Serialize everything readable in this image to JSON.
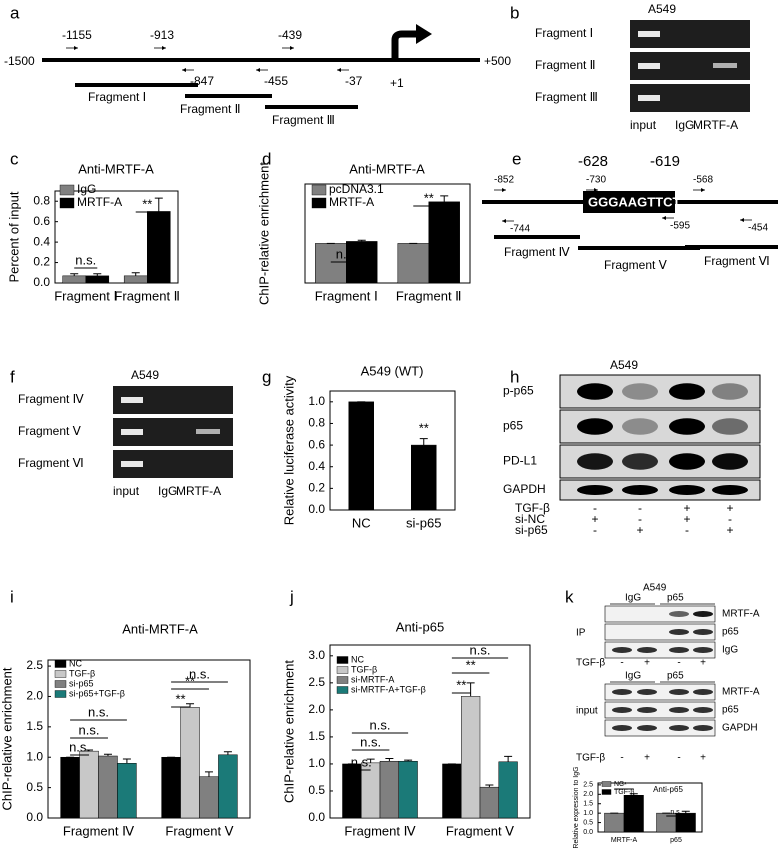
{
  "figure": {
    "panel_letters": [
      "a",
      "b",
      "c",
      "d",
      "e",
      "f",
      "g",
      "h",
      "i",
      "j",
      "k"
    ]
  },
  "chart_data": [
    {
      "type": "bar",
      "title": "Anti-MRTF-A",
      "y_label": "Percent of input",
      "categories": [
        "Fragment Ⅰ",
        "Fragment Ⅱ"
      ],
      "series": [
        {
          "name": "IgG",
          "color": "#808080",
          "values": [
            0.07,
            0.07
          ],
          "errors": [
            0.02,
            0.03
          ]
        },
        {
          "name": "MRTF-A",
          "color": "#000000",
          "values": [
            0.07,
            0.7
          ],
          "errors": [
            0.02,
            0.13
          ]
        }
      ],
      "ylim": [
        0,
        0.9
      ],
      "yticks": [
        {
          "value": 0,
          "label": "0.0"
        },
        0.2,
        0.4,
        0.6,
        0.8
      ],
      "annotations": [
        "n.s.",
        "**"
      ]
    },
    {
      "type": "bar",
      "title": "Anti-MRTF-A",
      "y_label": "ChIP-relative enrichment",
      "categories": [
        "Fragment Ⅰ",
        "Fragment Ⅱ"
      ],
      "series": [
        {
          "name": "pcDNA3.1",
          "color": "#808080",
          "values": [
            1,
            1
          ],
          "errors": [
            0,
            0
          ]
        },
        {
          "name": "MRTF-A",
          "color": "#000000",
          "values": [
            1.05,
            2.05
          ],
          "errors": [
            0.03,
            0.15
          ]
        }
      ],
      "ylim": [
        0,
        2.5
      ],
      "annotations": [
        "n.s.",
        "**"
      ]
    },
    {
      "type": "bar",
      "title": "A549 (WT)",
      "y_label": "Relative luciferase activity",
      "categories": [
        "NC",
        "si-p65"
      ],
      "series": [
        {
          "name": null,
          "color": "#000000",
          "values": [
            1.0,
            0.6
          ],
          "errors": [
            0,
            0.06
          ]
        }
      ],
      "ylim": [
        0,
        1.1
      ],
      "yticks": [
        {
          "value": 0,
          "label": "0.0"
        },
        0.2,
        0.4,
        0.6,
        0.8,
        {
          "value": 1,
          "label": "1.0"
        }
      ],
      "annotations": [
        "**"
      ]
    },
    {
      "type": "bar",
      "title": "Anti-MRTF-A",
      "y_label": "ChIP-relative enrichment",
      "categories": [
        "Fragment Ⅳ",
        "Fragment Ⅴ"
      ],
      "series": [
        {
          "name": "NC",
          "color": "#000000",
          "values": [
            1,
            1
          ],
          "errors": [
            0,
            0
          ]
        },
        {
          "name": "TGF-β",
          "color": "#c8c8c8",
          "values": [
            1.1,
            1.82
          ],
          "errors": [
            0.02,
            0.06
          ]
        },
        {
          "name": "si-p65",
          "color": "#808080",
          "values": [
            1.02,
            0.68
          ],
          "errors": [
            0.03,
            0.08
          ]
        },
        {
          "name": "si-p65+TGF-β",
          "color": "#1b7a78",
          "values": [
            0.9,
            1.04
          ],
          "errors": [
            0.07,
            0.05
          ]
        }
      ],
      "ylim": [
        0,
        2.6
      ],
      "yticks": [
        {
          "value": 0,
          "label": "0.0"
        },
        0.5,
        {
          "value": 1,
          "label": "1.0"
        },
        1.5,
        {
          "value": 2,
          "label": "2.0"
        },
        2.5
      ],
      "annotations": [
        "n.s.",
        "n.s.",
        "n.s.",
        "**",
        "**",
        "n.s."
      ]
    },
    {
      "type": "bar",
      "title": "Anti-p65",
      "y_label": "ChIP-relative enrichment",
      "categories": [
        "Fragment Ⅳ",
        "Fragment Ⅴ"
      ],
      "series": [
        {
          "name": "NC",
          "color": "#000000",
          "values": [
            1,
            1
          ],
          "errors": [
            0,
            0
          ]
        },
        {
          "name": "TGF-β",
          "color": "#c8c8c8",
          "values": [
            1.02,
            2.25
          ],
          "errors": [
            0.07,
            0.25
          ]
        },
        {
          "name": "si-MRTF-A",
          "color": "#808080",
          "values": [
            1.05,
            0.57
          ],
          "errors": [
            0.05,
            0.04
          ]
        },
        {
          "name": "si-MRTF-A+TGF-β",
          "color": "#1b7a78",
          "values": [
            1.05,
            1.04
          ],
          "errors": [
            0.02,
            0.1
          ]
        }
      ],
      "ylim": [
        0,
        3.2
      ],
      "yticks": [
        {
          "value": 0,
          "label": "0.0"
        },
        0.5,
        {
          "value": 1,
          "label": "1.0"
        },
        1.5,
        {
          "value": 2,
          "label": "2.0"
        },
        2.5,
        {
          "value": 3,
          "label": "3.0"
        }
      ],
      "annotations": [
        "n.s.",
        "n.s.",
        "n.s.",
        "**",
        "**",
        "n.s."
      ]
    },
    {
      "type": "bar",
      "title": "Anti-p65",
      "y_label": "Relative expression to IgG",
      "categories": [
        "MRTF-A",
        "p65"
      ],
      "series": [
        {
          "name": "NC",
          "color": "#808080",
          "values": [
            1,
            1
          ],
          "errors": [
            0,
            0
          ]
        },
        {
          "name": "TGF-β",
          "color": "#000000",
          "values": [
            1.95,
            1.0
          ],
          "errors": [
            0.08,
            0.1
          ]
        }
      ],
      "ylim": [
        0,
        2.6
      ],
      "yticks": [
        {
          "value": 0,
          "label": "0.0"
        },
        0.5,
        {
          "value": 1,
          "label": "1.0"
        },
        1.5,
        {
          "value": 2,
          "label": "2.0"
        },
        2.5
      ],
      "annotations": [
        "**",
        "n.s."
      ]
    }
  ],
  "diagrams": {
    "a": {
      "ends": [
        "-1500",
        "+500"
      ],
      "above": [
        "-1155",
        "-913",
        "-439"
      ],
      "below": [
        "-847",
        "-455",
        "-37",
        "+1"
      ],
      "fragments": [
        "Fragment Ⅰ",
        "Fragment Ⅱ",
        "Fragment Ⅲ"
      ]
    },
    "b": {
      "title": "A549",
      "rows": [
        "Fragment Ⅰ",
        "Fragment Ⅱ",
        "Fragment Ⅲ"
      ],
      "lanes": [
        "input",
        "IgG",
        "MRTF-A"
      ]
    },
    "e": {
      "top": [
        "-628",
        "-619"
      ],
      "above": [
        "-852",
        "-730",
        "-568"
      ],
      "sequence": "GGGAAGTTCT",
      "below": [
        "-744",
        "-595",
        "-454"
      ],
      "fragments": [
        "Fragment Ⅳ",
        "Fragment Ⅴ",
        "Fragment Ⅵ"
      ]
    },
    "f": {
      "title": "A549",
      "rows": [
        "Fragment Ⅳ",
        "Fragment Ⅴ",
        "Fragment Ⅵ"
      ],
      "lanes": [
        "input",
        "IgG",
        "MRTF-A"
      ]
    },
    "h": {
      "title": "A549",
      "rows": [
        "p-p65",
        "p65",
        "PD-L1",
        "GAPDH"
      ],
      "conditions": [
        {
          "name": "TGF-β",
          "signs": [
            "-",
            "-",
            "+",
            "+"
          ]
        },
        {
          "name": "si-NC",
          "signs": [
            "+",
            "-",
            "+",
            "-"
          ]
        },
        {
          "name": "si-p65",
          "signs": [
            "-",
            "+",
            "-",
            "+"
          ]
        }
      ]
    },
    "k": {
      "title": "A549",
      "lanes": [
        "IgG",
        "p65"
      ],
      "ip_label": "IP",
      "input_label": "input",
      "ip_rows": [
        "MRTF-A",
        "p65",
        "IgG"
      ],
      "input_rows": [
        "MRTF-A",
        "p65",
        "GAPDH"
      ],
      "treatment": {
        "name": "TGF-β",
        "signs": [
          "-",
          "+",
          "-",
          "+"
        ]
      }
    }
  }
}
